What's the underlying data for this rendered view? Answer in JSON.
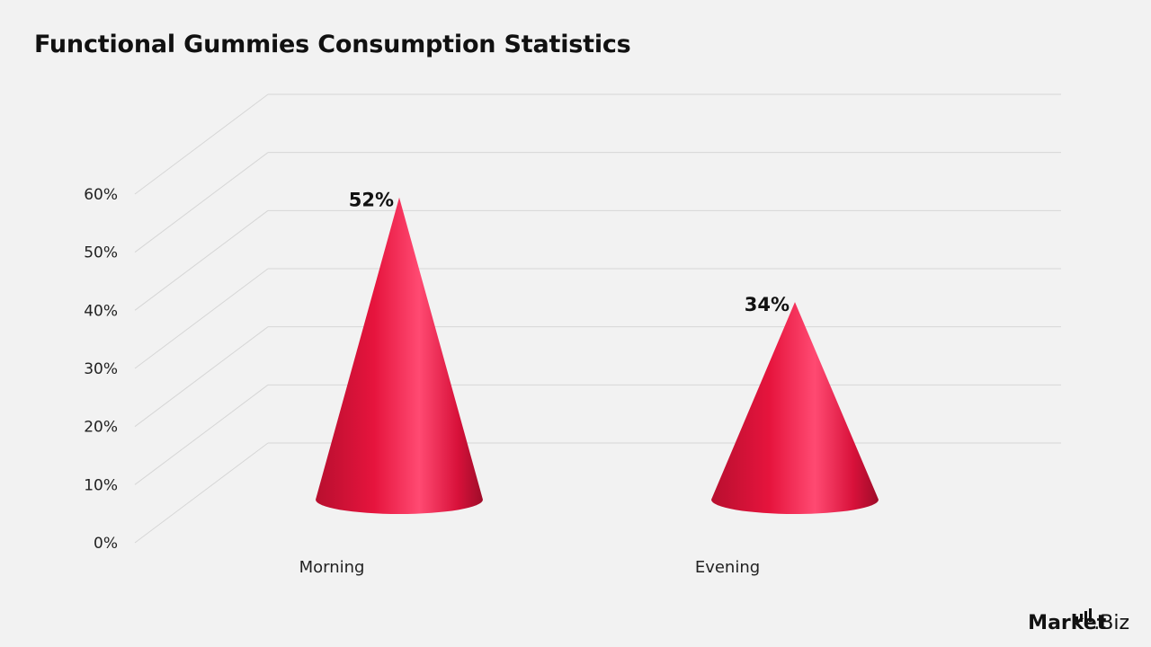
{
  "title": "Functional Gummies Consumption Statistics",
  "chart_data": {
    "type": "bar",
    "style": "3d-cone",
    "categories": [
      "Morning",
      "Evening"
    ],
    "values": [
      52,
      34
    ],
    "data_labels": [
      "52%",
      "34%"
    ],
    "ylim": [
      0,
      60
    ],
    "yticks": [
      "0%",
      "10%",
      "20%",
      "30%",
      "40%",
      "50%",
      "60%"
    ],
    "grid": true,
    "color": "#e8173f"
  },
  "brand": {
    "bold": "Market",
    "rest": ".Biz"
  }
}
